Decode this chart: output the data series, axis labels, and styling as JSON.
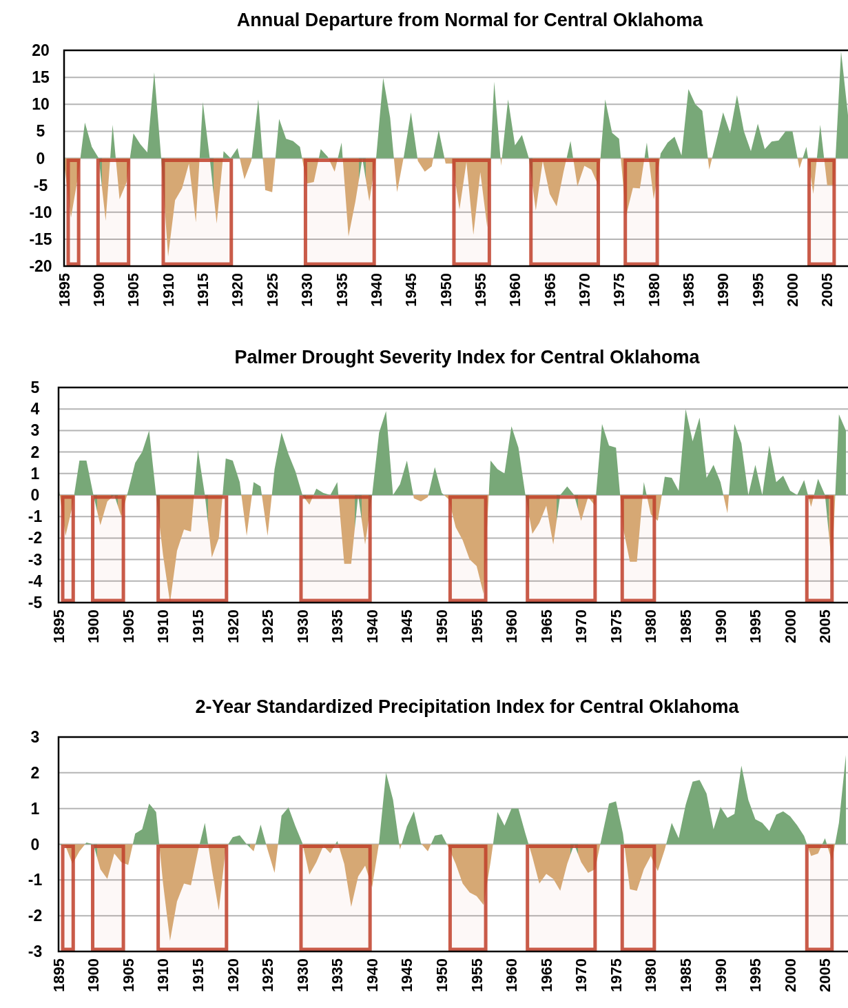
{
  "chart_data": [
    {
      "type": "area",
      "title": "Annual Departure from Normal for Central Oklahoma",
      "x": [
        1895,
        1896,
        1897,
        1898,
        1899,
        1900,
        1901,
        1902,
        1903,
        1904,
        1905,
        1906,
        1907,
        1908,
        1909,
        1910,
        1911,
        1912,
        1913,
        1914,
        1915,
        1916,
        1917,
        1918,
        1919,
        1920,
        1921,
        1922,
        1923,
        1924,
        1925,
        1926,
        1927,
        1928,
        1929,
        1930,
        1931,
        1932,
        1933,
        1934,
        1935,
        1936,
        1937,
        1938,
        1939,
        1940,
        1941,
        1942,
        1943,
        1944,
        1945,
        1946,
        1947,
        1948,
        1949,
        1950,
        1951,
        1952,
        1953,
        1954,
        1955,
        1956,
        1957,
        1958,
        1959,
        1960,
        1961,
        1962,
        1963,
        1964,
        1965,
        1966,
        1967,
        1968,
        1969,
        1970,
        1971,
        1972,
        1973,
        1974,
        1975,
        1976,
        1977,
        1978,
        1979,
        1980,
        1981,
        1982,
        1983,
        1984,
        1985,
        1986,
        1987,
        1988,
        1989,
        1990,
        1991,
        1992,
        1993,
        1994,
        1995,
        1996,
        1997,
        1998,
        1999,
        2000,
        2001,
        2002,
        2003,
        2004,
        2005,
        2006,
        2007,
        2008
      ],
      "series": [
        {
          "values": [
            -1,
            -11,
            -3.5,
            6.6,
            2.1,
            0,
            -11.6,
            6.2,
            -7.6,
            -4.5,
            4.6,
            2.6,
            1.1,
            15.9,
            0,
            -18.2,
            -7.8,
            -5.6,
            -1,
            -11.9,
            10.4,
            0,
            -12.1,
            1.3,
            0,
            1.9,
            -3.9,
            -0.5,
            10.9,
            -5.9,
            -6.3,
            7.3,
            3.6,
            3.2,
            2.1,
            -4.7,
            -4.4,
            1.7,
            0.3,
            -2.5,
            2.9,
            -14.5,
            -8,
            0,
            -8,
            0.3,
            14.9,
            7.5,
            -6.3,
            0.5,
            8.5,
            -0.5,
            -2.5,
            -1.5,
            5.2,
            -1,
            -1,
            -9.5,
            -0.7,
            -14.2,
            -2.6,
            -12.8,
            14.2,
            -1.4,
            10.9,
            2.4,
            4.3,
            0,
            -9.7,
            -0.5,
            -6.6,
            -8.9,
            -2.5,
            3.2,
            -5.2,
            -1.4,
            -2.1,
            -5,
            10.9,
            4.7,
            3.6,
            -10.7,
            -5.5,
            -5.6,
            2.9,
            -7.6,
            0.9,
            2.9,
            4,
            0.5,
            12.8,
            10,
            8.8,
            -2.1,
            3.1,
            8.5,
            4.7,
            11.7,
            5,
            1.3,
            6.4,
            1.7,
            3.1,
            3.3,
            5,
            5,
            -1.9,
            2.1,
            -6.6,
            6.2,
            -5,
            -5,
            19.8,
            8
          ],
          "colors": [
            "#d6a874",
            "#d6a874",
            "#d6a874",
            "#78a878",
            "#78a878",
            "#78a878",
            "#d6a874",
            "#78a878",
            "#d6a874",
            "#d6a874",
            "#78a878",
            "#78a878",
            "#78a878",
            "#78a878",
            "#78a878",
            "#d6a874",
            "#d6a874",
            "#d6a874",
            "#d6a874",
            "#d6a874",
            "#78a878",
            "#78a878",
            "#d6a874",
            "#78a878",
            "#78a878",
            "#78a878",
            "#d6a874",
            "#d6a874",
            "#78a878",
            "#d6a874",
            "#d6a874",
            "#78a878",
            "#78a878",
            "#78a878",
            "#78a878",
            "#d6a874",
            "#d6a874",
            "#78a878",
            "#78a878",
            "#d6a874",
            "#78a878",
            "#d6a874",
            "#d6a874",
            "#78a878",
            "#d6a874",
            "#78a878",
            "#78a878",
            "#78a878",
            "#d6a874",
            "#78a878",
            "#78a878",
            "#d6a874",
            "#d6a874",
            "#d6a874",
            "#78a878",
            "#d6a874",
            "#d6a874",
            "#d6a874",
            "#d6a874",
            "#d6a874",
            "#d6a874",
            "#d6a874",
            "#78a878",
            "#d6a874",
            "#78a878",
            "#78a878",
            "#78a878",
            "#78a878",
            "#d6a874",
            "#d6a874",
            "#d6a874",
            "#d6a874",
            "#d6a874",
            "#78a878",
            "#d6a874",
            "#d6a874",
            "#d6a874",
            "#d6a874",
            "#78a878",
            "#78a878",
            "#78a878",
            "#d6a874",
            "#d6a874",
            "#d6a874",
            "#78a878",
            "#d6a874",
            "#78a878",
            "#78a878",
            "#78a878",
            "#78a878",
            "#78a878",
            "#78a878",
            "#78a878",
            "#d6a874",
            "#78a878",
            "#78a878",
            "#78a878",
            "#78a878",
            "#78a878",
            "#78a878",
            "#78a878",
            "#78a878",
            "#78a878",
            "#78a878",
            "#78a878",
            "#78a878",
            "#d6a874",
            "#78a878",
            "#d6a874",
            "#78a878",
            "#d6a874",
            "#d6a874",
            "#78a878",
            "#78a878"
          ]
        }
      ],
      "xlim": [
        1895,
        2008
      ],
      "xticks": [
        1895,
        1900,
        1905,
        1910,
        1915,
        1920,
        1925,
        1930,
        1935,
        1940,
        1945,
        1950,
        1955,
        1960,
        1965,
        1970,
        1975,
        1980,
        1985,
        1990,
        1995,
        2000,
        2005
      ],
      "ylim": [
        -20,
        20
      ],
      "yticks": [
        -20,
        -15,
        -10,
        -5,
        0,
        5,
        10,
        15,
        20
      ],
      "grid": "y",
      "bands": [
        {
          "axis": "x",
          "from": 1895.3,
          "to": 1897.4,
          "color": "#c0402a"
        },
        {
          "axis": "x",
          "from": 1899.6,
          "to": 1904.6,
          "color": "#c0402a"
        },
        {
          "axis": "x",
          "from": 1909,
          "to": 1919.4,
          "color": "#c0402a"
        },
        {
          "axis": "x",
          "from": 1929.5,
          "to": 1940,
          "color": "#c0402a"
        },
        {
          "axis": "x",
          "from": 1950.9,
          "to": 1956.6,
          "color": "#c0402a"
        },
        {
          "axis": "x",
          "from": 1962,
          "to": 1972.3,
          "color": "#c0402a"
        },
        {
          "axis": "x",
          "from": 1975.6,
          "to": 1980.8,
          "color": "#c0402a"
        },
        {
          "axis": "x",
          "from": 2002.1,
          "to": 2006.3,
          "color": "#c0402a"
        }
      ]
    },
    {
      "type": "area",
      "title": "Palmer Drought Severity Index for Central Oklahoma",
      "x": [
        1895,
        1896,
        1897,
        1898,
        1899,
        1900,
        1901,
        1902,
        1903,
        1904,
        1905,
        1906,
        1907,
        1908,
        1909,
        1910,
        1911,
        1912,
        1913,
        1914,
        1915,
        1916,
        1917,
        1918,
        1919,
        1920,
        1921,
        1922,
        1923,
        1924,
        1925,
        1926,
        1927,
        1928,
        1929,
        1930,
        1931,
        1932,
        1933,
        1934,
        1935,
        1936,
        1937,
        1938,
        1939,
        1940,
        1941,
        1942,
        1943,
        1944,
        1945,
        1946,
        1947,
        1948,
        1949,
        1950,
        1951,
        1952,
        1953,
        1954,
        1955,
        1956,
        1957,
        1958,
        1959,
        1960,
        1961,
        1962,
        1963,
        1964,
        1965,
        1966,
        1967,
        1968,
        1969,
        1970,
        1971,
        1972,
        1973,
        1974,
        1975,
        1976,
        1977,
        1978,
        1979,
        1980,
        1981,
        1982,
        1983,
        1984,
        1985,
        1986,
        1987,
        1988,
        1989,
        1990,
        1991,
        1992,
        1993,
        1994,
        1995,
        1996,
        1997,
        1998,
        1999,
        2000,
        2001,
        2002,
        2003,
        2004,
        2005,
        2006,
        2007,
        2008
      ],
      "series": [
        {
          "values": [
            0.4,
            -1.9,
            -0.5,
            1.6,
            1.6,
            0,
            -1.4,
            -0.3,
            0,
            -1,
            0.2,
            1.5,
            2,
            3,
            0,
            -2.8,
            -5,
            -2.6,
            -1.6,
            -1.7,
            2.1,
            0,
            -2.9,
            -2,
            1.7,
            1.6,
            0.6,
            -1.9,
            0.6,
            0.4,
            -1.9,
            1.2,
            2.9,
            1.9,
            1.1,
            0,
            -0.45,
            0.3,
            0.1,
            0,
            0.6,
            -3.2,
            -3.2,
            0,
            -2.3,
            0,
            2.9,
            3.9,
            0,
            0.5,
            1.6,
            -0.15,
            -0.3,
            -0.1,
            1.3,
            0.1,
            -0.2,
            -1.5,
            -2.1,
            -3,
            -3.3,
            -4.6,
            1.6,
            1.2,
            1,
            3.2,
            2.2,
            0,
            -1.8,
            -1.3,
            -0.5,
            -2.3,
            0,
            0.4,
            0,
            -1.2,
            -0.1,
            -0.5,
            3.3,
            2.3,
            2.2,
            -1.5,
            -3.1,
            -3.1,
            0.6,
            -0.9,
            -1.2,
            0.85,
            0.8,
            0.2,
            4,
            2.5,
            3.6,
            0.8,
            1.4,
            0.6,
            -0.85,
            3.3,
            2.4,
            0,
            1.4,
            0,
            2.3,
            0.6,
            0.9,
            0.2,
            0,
            0.7,
            -0.55,
            0.75,
            0,
            -3.3,
            3.75,
            3
          ],
          "colors": [
            "#78a878",
            "#d6a874",
            "#d6a874",
            "#78a878",
            "#78a878",
            "#78a878",
            "#d6a874",
            "#d6a874",
            "#78a878",
            "#d6a874",
            "#78a878",
            "#78a878",
            "#78a878",
            "#78a878",
            "#78a878",
            "#d6a874",
            "#d6a874",
            "#d6a874",
            "#d6a874",
            "#d6a874",
            "#78a878",
            "#78a878",
            "#d6a874",
            "#d6a874",
            "#78a878",
            "#78a878",
            "#78a878",
            "#d6a874",
            "#78a878",
            "#78a878",
            "#d6a874",
            "#78a878",
            "#78a878",
            "#78a878",
            "#78a878",
            "#78a878",
            "#d6a874",
            "#78a878",
            "#78a878",
            "#78a878",
            "#78a878",
            "#d6a874",
            "#d6a874",
            "#78a878",
            "#d6a874",
            "#78a878",
            "#78a878",
            "#78a878",
            "#78a878",
            "#78a878",
            "#78a878",
            "#d6a874",
            "#d6a874",
            "#d6a874",
            "#78a878",
            "#78a878",
            "#d6a874",
            "#d6a874",
            "#d6a874",
            "#d6a874",
            "#d6a874",
            "#d6a874",
            "#78a878",
            "#78a878",
            "#78a878",
            "#78a878",
            "#78a878",
            "#78a878",
            "#d6a874",
            "#d6a874",
            "#d6a874",
            "#d6a874",
            "#78a878",
            "#78a878",
            "#78a878",
            "#d6a874",
            "#d6a874",
            "#d6a874",
            "#78a878",
            "#78a878",
            "#78a878",
            "#d6a874",
            "#d6a874",
            "#d6a874",
            "#78a878",
            "#d6a874",
            "#d6a874",
            "#78a878",
            "#78a878",
            "#78a878",
            "#78a878",
            "#78a878",
            "#78a878",
            "#78a878",
            "#78a878",
            "#78a878",
            "#d6a874",
            "#78a878",
            "#78a878",
            "#78a878",
            "#78a878",
            "#78a878",
            "#78a878",
            "#78a878",
            "#78a878",
            "#78a878",
            "#78a878",
            "#78a878",
            "#d6a874",
            "#78a878",
            "#78a878",
            "#d6a874",
            "#78a878",
            "#78a878"
          ]
        }
      ],
      "xlim": [
        1895,
        2008.3
      ],
      "xticks": [
        1895,
        1900,
        1905,
        1910,
        1915,
        1920,
        1925,
        1930,
        1935,
        1940,
        1945,
        1950,
        1955,
        1960,
        1965,
        1970,
        1975,
        1980,
        1985,
        1990,
        1995,
        2000,
        2005
      ],
      "ylim": [
        -5,
        5
      ],
      "yticks": [
        -5,
        -4,
        -3,
        -2,
        -1,
        0,
        1,
        2,
        3,
        4,
        5
      ],
      "grid": "y",
      "bands": [
        {
          "axis": "x",
          "from": 1895.3,
          "to": 1897.4,
          "color": "#c0402a"
        },
        {
          "axis": "x",
          "from": 1899.6,
          "to": 1904.6,
          "color": "#c0402a"
        },
        {
          "axis": "x",
          "from": 1909,
          "to": 1919.4,
          "color": "#c0402a"
        },
        {
          "axis": "x",
          "from": 1929.5,
          "to": 1940,
          "color": "#c0402a"
        },
        {
          "axis": "x",
          "from": 1950.9,
          "to": 1956.6,
          "color": "#c0402a"
        },
        {
          "axis": "x",
          "from": 1962,
          "to": 1972.3,
          "color": "#c0402a"
        },
        {
          "axis": "x",
          "from": 1975.6,
          "to": 1980.8,
          "color": "#c0402a"
        },
        {
          "axis": "x",
          "from": 2002.1,
          "to": 2006.3,
          "color": "#c0402a"
        }
      ]
    },
    {
      "type": "area",
      "title": "2-Year Standardized Precipitation Index for Central Oklahoma",
      "x": [
        1895,
        1896,
        1897,
        1898,
        1899,
        1900,
        1901,
        1902,
        1903,
        1904,
        1905,
        1906,
        1907,
        1908,
        1909,
        1910,
        1911,
        1912,
        1913,
        1914,
        1915,
        1916,
        1917,
        1918,
        1919,
        1920,
        1921,
        1922,
        1923,
        1924,
        1925,
        1926,
        1927,
        1928,
        1929,
        1930,
        1931,
        1932,
        1933,
        1934,
        1935,
        1936,
        1937,
        1938,
        1939,
        1940,
        1941,
        1942,
        1943,
        1944,
        1945,
        1946,
        1947,
        1948,
        1949,
        1950,
        1951,
        1952,
        1953,
        1954,
        1955,
        1956,
        1957,
        1958,
        1959,
        1960,
        1961,
        1962,
        1963,
        1964,
        1965,
        1966,
        1967,
        1968,
        1969,
        1970,
        1971,
        1972,
        1973,
        1974,
        1975,
        1976,
        1977,
        1978,
        1979,
        1980,
        1981,
        1982,
        1983,
        1984,
        1985,
        1986,
        1987,
        1988,
        1989,
        1990,
        1991,
        1992,
        1993,
        1994,
        1995,
        1996,
        1997,
        1998,
        1999,
        2000,
        2001,
        2002,
        2003,
        2004,
        2005,
        2006,
        2007,
        2008
      ],
      "series": [
        {
          "values": [
            0,
            -0.05,
            -0.55,
            -0.2,
            0.05,
            0,
            -0.7,
            -0.97,
            -0.26,
            -0.5,
            -0.58,
            0.3,
            0.42,
            1.14,
            0.9,
            -1.1,
            -2.7,
            -1.6,
            -1.1,
            -1.15,
            -0.2,
            0.6,
            -0.7,
            -1.85,
            -0.1,
            0.2,
            0.25,
            0,
            -0.2,
            0.55,
            -0.15,
            -0.8,
            0.8,
            1.03,
            0.5,
            0.03,
            -0.85,
            -0.5,
            -0.05,
            -0.25,
            0.09,
            -0.55,
            -1.75,
            -0.9,
            -0.6,
            -1.2,
            0.05,
            2,
            1.25,
            -0.15,
            0.5,
            0.92,
            0.03,
            -0.2,
            0.24,
            0.28,
            -0.1,
            -0.55,
            -1.1,
            -1.35,
            -1.45,
            -1.7,
            -0.5,
            0.9,
            0.52,
            1,
            1,
            0.3,
            -0.35,
            -1.1,
            -0.83,
            -0.97,
            -1.3,
            -0.55,
            0,
            -0.5,
            -0.8,
            -0.7,
            0.23,
            1.14,
            1.2,
            0.3,
            -1.26,
            -1.3,
            -0.7,
            -0.33,
            -0.75,
            -0.15,
            0.6,
            0.17,
            1.1,
            1.75,
            1.8,
            1.42,
            0.42,
            1.04,
            0.74,
            0.85,
            2.2,
            1.24,
            0.7,
            0.6,
            0.37,
            0.83,
            0.92,
            0.78,
            0.53,
            0.23,
            -0.33,
            -0.26,
            0.17,
            -0.47,
            0.6,
            2.5
          ],
          "colors": [
            "#78a878",
            "#d6a874",
            "#d6a874",
            "#d6a874",
            "#78a878",
            "#78a878",
            "#d6a874",
            "#d6a874",
            "#d6a874",
            "#d6a874",
            "#d6a874",
            "#78a878",
            "#78a878",
            "#78a878",
            "#78a878",
            "#d6a874",
            "#d6a874",
            "#d6a874",
            "#d6a874",
            "#d6a874",
            "#d6a874",
            "#78a878",
            "#d6a874",
            "#d6a874",
            "#d6a874",
            "#78a878",
            "#78a878",
            "#78a878",
            "#d6a874",
            "#78a878",
            "#d6a874",
            "#d6a874",
            "#78a878",
            "#78a878",
            "#78a878",
            "#78a878",
            "#d6a874",
            "#d6a874",
            "#d6a874",
            "#d6a874",
            "#78a878",
            "#d6a874",
            "#d6a874",
            "#d6a874",
            "#d6a874",
            "#d6a874",
            "#78a878",
            "#78a878",
            "#78a878",
            "#d6a874",
            "#78a878",
            "#78a878",
            "#78a878",
            "#d6a874",
            "#78a878",
            "#78a878",
            "#d6a874",
            "#d6a874",
            "#d6a874",
            "#d6a874",
            "#d6a874",
            "#d6a874",
            "#d6a874",
            "#78a878",
            "#78a878",
            "#78a878",
            "#78a878",
            "#78a878",
            "#d6a874",
            "#d6a874",
            "#d6a874",
            "#d6a874",
            "#d6a874",
            "#d6a874",
            "#78a878",
            "#d6a874",
            "#d6a874",
            "#d6a874",
            "#78a878",
            "#78a878",
            "#78a878",
            "#78a878",
            "#d6a874",
            "#d6a874",
            "#d6a874",
            "#d6a874",
            "#d6a874",
            "#d6a874",
            "#78a878",
            "#78a878",
            "#78a878",
            "#78a878",
            "#78a878",
            "#78a878",
            "#78a878",
            "#78a878",
            "#78a878",
            "#78a878",
            "#78a878",
            "#78a878",
            "#78a878",
            "#78a878",
            "#78a878",
            "#78a878",
            "#78a878",
            "#78a878",
            "#78a878",
            "#78a878",
            "#d6a874",
            "#d6a874",
            "#78a878",
            "#d6a874",
            "#78a878",
            "#78a878"
          ]
        }
      ],
      "xlim": [
        1895,
        2008.3
      ],
      "xticks": [
        1895,
        1900,
        1905,
        1910,
        1915,
        1920,
        1925,
        1930,
        1935,
        1940,
        1945,
        1950,
        1955,
        1960,
        1965,
        1970,
        1975,
        1980,
        1985,
        1990,
        1995,
        2000,
        2005
      ],
      "ylim": [
        -3,
        3
      ],
      "yticks": [
        -3,
        -2,
        -1,
        0,
        1,
        2,
        3
      ],
      "grid": "y",
      "bands": [
        {
          "axis": "x",
          "from": 1895.3,
          "to": 1897.4,
          "color": "#c0402a"
        },
        {
          "axis": "x",
          "from": 1899.6,
          "to": 1904.6,
          "color": "#c0402a"
        },
        {
          "axis": "x",
          "from": 1909,
          "to": 1919.4,
          "color": "#c0402a"
        },
        {
          "axis": "x",
          "from": 1929.5,
          "to": 1940,
          "color": "#c0402a"
        },
        {
          "axis": "x",
          "from": 1950.9,
          "to": 1956.6,
          "color": "#c0402a"
        },
        {
          "axis": "x",
          "from": 1962,
          "to": 1972.3,
          "color": "#c0402a"
        },
        {
          "axis": "x",
          "from": 1975.6,
          "to": 1980.8,
          "color": "#c0402a"
        },
        {
          "axis": "x",
          "from": 2002.1,
          "to": 2006.3,
          "color": "#c0402a"
        }
      ]
    }
  ]
}
